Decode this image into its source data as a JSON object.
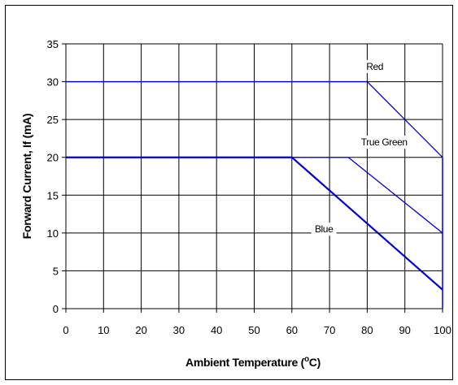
{
  "chart_data": {
    "type": "line",
    "title": "",
    "xlabel": "Ambient Temperature (",
    "xlabel_sup": "o",
    "xlabel_tail": "C)",
    "ylabel": "Forward Current, If (mA)",
    "xlim": [
      0,
      100
    ],
    "ylim": [
      0,
      35
    ],
    "xticks": [
      "0",
      "10",
      "20",
      "30",
      "40",
      "50",
      "60",
      "70",
      "80",
      "90",
      "100"
    ],
    "yticks": [
      "0",
      "5",
      "10",
      "15",
      "20",
      "25",
      "30",
      "35"
    ],
    "grid": true,
    "legend": "none",
    "series": [
      {
        "name": "Red",
        "color": "#0000cc",
        "x": [
          0,
          80,
          100
        ],
        "y": [
          30,
          30,
          20
        ]
      },
      {
        "name": "True Green",
        "color": "#0000cc",
        "x": [
          0,
          75,
          100
        ],
        "y": [
          20,
          20,
          10
        ]
      },
      {
        "name": "Blue",
        "color": "#0000cc",
        "x": [
          0,
          60,
          100
        ],
        "y": [
          20,
          20,
          2.5
        ]
      }
    ],
    "annotations": [
      {
        "text": "Red",
        "x": 82,
        "y": 32
      },
      {
        "text": "True Green",
        "x": 84.5,
        "y": 22
      },
      {
        "text": "Blue",
        "x": 68.5,
        "y": 10.5
      }
    ]
  }
}
